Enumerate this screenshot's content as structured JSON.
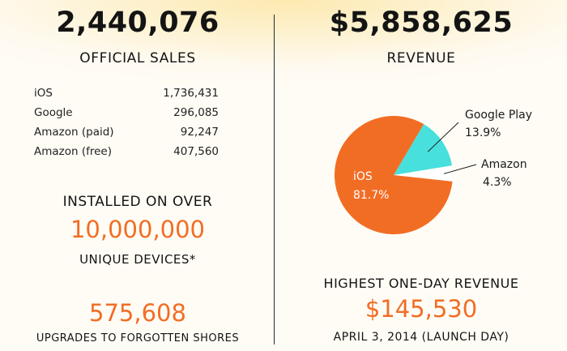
{
  "left": {
    "total_sales": "2,440,076",
    "total_sales_label": "OFFICIAL SALES",
    "platforms": [
      {
        "name": "iOS",
        "value": "1,736,431"
      },
      {
        "name": "Google",
        "value": "296,085"
      },
      {
        "name": "Amazon (paid)",
        "value": "92,247"
      },
      {
        "name": "Amazon (free)",
        "value": "407,560"
      }
    ],
    "installed_label": "INSTALLED ON OVER",
    "installed_count": "10,000,000",
    "installed_sub": "UNIQUE DEVICES*",
    "upgrades_count": "575,608",
    "upgrades_label": "UPGRADES TO FORGOTTEN SHORES"
  },
  "right": {
    "revenue": "$5,858,625",
    "revenue_label": "REVENUE",
    "highest_label": "HIGHEST ONE-DAY REVENUE",
    "highest_value": "$145,530",
    "highest_date": "APRIL 3, 2014 (LAUNCH DAY)"
  },
  "colors": {
    "ios": "#f26d24",
    "google": "#47e0dc",
    "amazon": "#ffffff",
    "accent": "#f26d24"
  },
  "chart_data": {
    "type": "pie",
    "slices": [
      {
        "label": "iOS",
        "value": 81.7,
        "display": "81.7%",
        "color": "#f26d24"
      },
      {
        "label": "Google Play",
        "value": 13.9,
        "display": "13.9%",
        "color": "#47e0dc"
      },
      {
        "label": "Amazon",
        "value": 4.3,
        "display": "4.3%",
        "color": "#ffffff"
      }
    ]
  }
}
